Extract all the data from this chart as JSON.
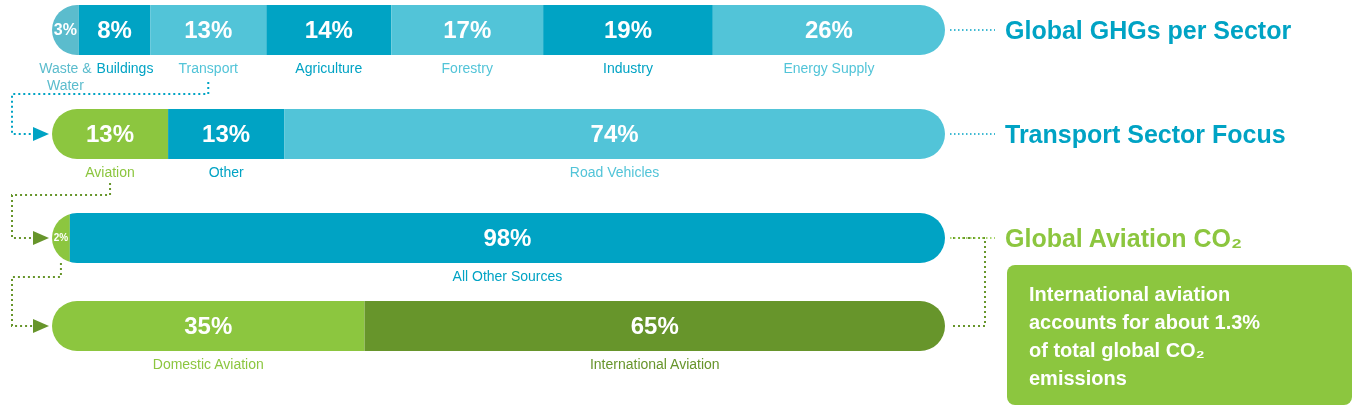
{
  "chart_data": [
    {
      "type": "bar",
      "orientation": "horizontal",
      "stacked": true,
      "categories": [
        "Global GHGs per Sector"
      ],
      "xlim": [
        0,
        100
      ],
      "tick_labels": "y",
      "series": [
        {
          "name": "Waste & Water",
          "color": "#5bbccd",
          "values": [
            3
          ],
          "value_labels": [
            "3%"
          ]
        },
        {
          "name": "Buildings",
          "color": "#00a3c4",
          "values": [
            8
          ],
          "value_labels": [
            "8%"
          ]
        },
        {
          "name": "Transport",
          "color": "#52c4d8",
          "values": [
            13
          ],
          "value_labels": [
            "13%"
          ]
        },
        {
          "name": "Agriculture",
          "color": "#00a3c4",
          "values": [
            14
          ],
          "value_labels": [
            "14%"
          ]
        },
        {
          "name": "Forestry",
          "color": "#52c4d8",
          "values": [
            17
          ],
          "value_labels": [
            "17%"
          ]
        },
        {
          "name": "Industry",
          "color": "#00a3c4",
          "values": [
            19
          ],
          "value_labels": [
            "19%"
          ]
        },
        {
          "name": "Energy Supply",
          "color": "#52c4d8",
          "values": [
            26
          ],
          "value_labels": [
            "26%"
          ]
        }
      ]
    },
    {
      "type": "bar",
      "orientation": "horizontal",
      "stacked": true,
      "categories": [
        "Transport Sector Focus"
      ],
      "xlim": [
        0,
        100
      ],
      "tick_labels": "y",
      "series": [
        {
          "name": "Aviation",
          "color": "#8cc63f",
          "values": [
            13
          ],
          "value_labels": [
            "13%"
          ]
        },
        {
          "name": "Other",
          "color": "#00a3c4",
          "values": [
            13
          ],
          "value_labels": [
            "13%"
          ]
        },
        {
          "name": "Road Vehicles",
          "color": "#52c4d8",
          "values": [
            74
          ],
          "value_labels": [
            "74%"
          ]
        }
      ]
    },
    {
      "type": "bar",
      "orientation": "horizontal",
      "stacked": true,
      "categories": [
        "Global Aviation CO₂"
      ],
      "xlim": [
        0,
        100
      ],
      "tick_labels": "y",
      "series": [
        {
          "name": null,
          "color": "#8cc63f",
          "values": [
            2
          ],
          "value_labels": [
            "2%"
          ]
        },
        {
          "name": "All Other Sources",
          "color": "#00a3c4",
          "values": [
            98
          ],
          "value_labels": [
            "98%"
          ]
        }
      ]
    },
    {
      "type": "bar",
      "orientation": "horizontal",
      "stacked": true,
      "categories": [
        null
      ],
      "xlim": [
        0,
        100
      ],
      "tick_labels": "y",
      "annotations": [
        "International aviation accounts for about 1.3% of total global CO₂ emissions"
      ],
      "series": [
        {
          "name": "Domestic Aviation",
          "color": "#8cc63f",
          "values": [
            35
          ],
          "value_labels": [
            "35%"
          ]
        },
        {
          "name": "International Aviation",
          "color": "#67952b",
          "values": [
            65
          ],
          "value_labels": [
            "65%"
          ]
        }
      ]
    }
  ]
}
